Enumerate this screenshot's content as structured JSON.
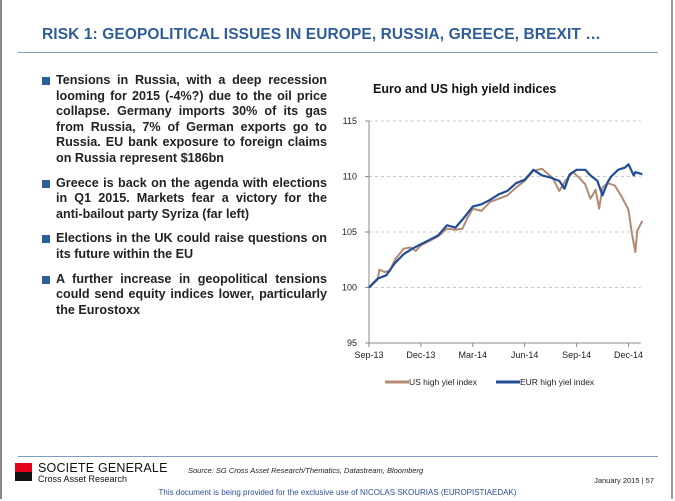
{
  "title": "RISK 1: GEOPOLITICAL ISSUES IN EUROPE, RUSSIA, GREECE, BREXIT …",
  "bullets": [
    "Tensions in Russia, with a deep recession looming for 2015 (-4%?) due to the oil price collapse. Germany imports 30% of its gas from Russia, 7% of German exports go to Russia. EU bank exposure to foreign claims on Russia represent $186bn",
    "Greece is back on the agenda with elections in Q1 2015. Markets fear a victory for the anti-bailout party Syriza (far left)",
    "Elections in the UK could raise questions on its future within the EU",
    "A further increase in geopolitical tensions could send equity indices lower, particularly the Eurostoxx"
  ],
  "chart_data": {
    "type": "line",
    "title": "Euro and US high yield indices",
    "xlabel": "",
    "ylabel": "",
    "x_unit": "months since Sep-13",
    "xticks": [
      {
        "label": "Sep-13",
        "x": 0
      },
      {
        "label": "Dec-13",
        "x": 3
      },
      {
        "label": "Mar-14",
        "x": 6
      },
      {
        "label": "Jun-14",
        "x": 9
      },
      {
        "label": "Sep-14",
        "x": 12
      },
      {
        "label": "Dec-14",
        "x": 15
      }
    ],
    "xlim": [
      0,
      16
    ],
    "yticks": [
      95,
      100,
      105,
      110,
      115
    ],
    "ylim": [
      95,
      115
    ],
    "grid": "horizontal dashed",
    "legend": "bottom",
    "series": [
      {
        "name": "US high yiel index",
        "color": "#b38a72",
        "points": [
          [
            0,
            100
          ],
          [
            0.5,
            100.7
          ],
          [
            0.6,
            101.6
          ],
          [
            0.9,
            101.4
          ],
          [
            1.2,
            101.5
          ],
          [
            1.5,
            102.5
          ],
          [
            2,
            103.5
          ],
          [
            2.4,
            103.6
          ],
          [
            2.7,
            103.3
          ],
          [
            3,
            103.8
          ],
          [
            3.5,
            104.2
          ],
          [
            4,
            104.6
          ],
          [
            4.5,
            105.3
          ],
          [
            5,
            105.2
          ],
          [
            5.4,
            105.3
          ],
          [
            5.7,
            106.3
          ],
          [
            6,
            107.1
          ],
          [
            6.5,
            106.9
          ],
          [
            7,
            107.7
          ],
          [
            7.5,
            108.0
          ],
          [
            8,
            108.3
          ],
          [
            8.5,
            109.0
          ],
          [
            9,
            109.6
          ],
          [
            9.5,
            110.5
          ],
          [
            10,
            110.7
          ],
          [
            10.3,
            110.3
          ],
          [
            10.6,
            109.9
          ],
          [
            11,
            108.7
          ],
          [
            11.4,
            109.7
          ],
          [
            11.8,
            110.4
          ],
          [
            12.2,
            109.8
          ],
          [
            12.5,
            109.3
          ],
          [
            12.8,
            108.0
          ],
          [
            13.1,
            108.8
          ],
          [
            13.3,
            107.1
          ],
          [
            13.5,
            109.0
          ],
          [
            13.8,
            109.4
          ],
          [
            14.2,
            109.2
          ],
          [
            14.6,
            108.2
          ],
          [
            15,
            107.0
          ],
          [
            15.2,
            104.8
          ],
          [
            15.4,
            103.2
          ],
          [
            15.5,
            105.1
          ],
          [
            15.8,
            106.0
          ]
        ]
      },
      {
        "name": "EUR high yiel index",
        "color": "#1f4e96",
        "points": [
          [
            0,
            100
          ],
          [
            0.5,
            100.8
          ],
          [
            1,
            101.1
          ],
          [
            1.5,
            102.2
          ],
          [
            2,
            103.0
          ],
          [
            2.5,
            103.5
          ],
          [
            3,
            103.9
          ],
          [
            3.5,
            104.3
          ],
          [
            4,
            104.7
          ],
          [
            4.5,
            105.6
          ],
          [
            5,
            105.4
          ],
          [
            5.5,
            106.3
          ],
          [
            6,
            107.3
          ],
          [
            6.5,
            107.5
          ],
          [
            7,
            107.9
          ],
          [
            7.5,
            108.4
          ],
          [
            8,
            108.7
          ],
          [
            8.5,
            109.4
          ],
          [
            9,
            109.7
          ],
          [
            9.5,
            110.6
          ],
          [
            10,
            110.1
          ],
          [
            10.5,
            109.9
          ],
          [
            11,
            109.6
          ],
          [
            11.3,
            108.9
          ],
          [
            11.6,
            110.2
          ],
          [
            12,
            110.6
          ],
          [
            12.5,
            110.6
          ],
          [
            12.8,
            110.1
          ],
          [
            13.2,
            109.6
          ],
          [
            13.5,
            108.3
          ],
          [
            13.8,
            109.5
          ],
          [
            14,
            110.0
          ],
          [
            14.4,
            110.6
          ],
          [
            14.8,
            110.8
          ],
          [
            15,
            111.1
          ],
          [
            15.3,
            110.1
          ],
          [
            15.4,
            110.4
          ],
          [
            15.8,
            110.2
          ]
        ]
      }
    ]
  },
  "footer": {
    "brand": "SOCIETE GENERALE",
    "brand_sub": "Cross Asset Research",
    "source": "Source: SG Cross Asset Research/Thematics, Datastream, Bloomberg",
    "date_page": "January 2015  |  57",
    "notice": "This document is being provided for the exclusive use of NICOLAS SKOURIAS (EUROPISTIAEDAK)"
  }
}
